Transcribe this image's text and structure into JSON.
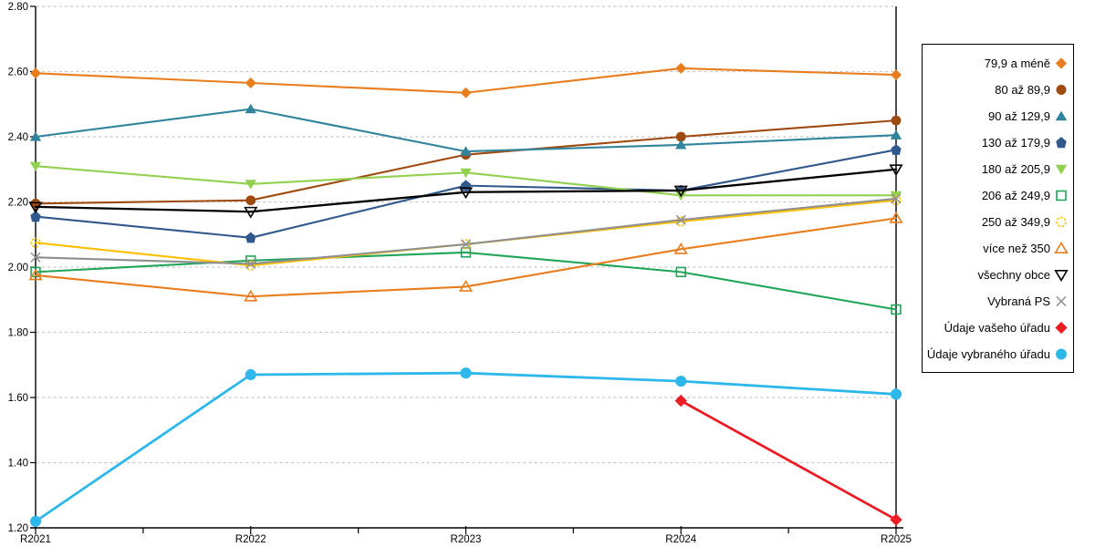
{
  "chart_data": {
    "type": "line",
    "title": "",
    "xlabel": "",
    "ylabel": "",
    "grid": "horizontal-dashed",
    "legend_position": "right-box",
    "x_categories": [
      "R2021",
      "R2022",
      "R2023",
      "R2024",
      "R2025"
    ],
    "y_axis": {
      "min": 1.2,
      "max": 2.8,
      "step": 0.2,
      "tick_labels": [
        "1.20",
        "1.40",
        "1.60",
        "1.80",
        "2.00",
        "2.20",
        "2.40",
        "2.60",
        "2.80"
      ]
    },
    "colors": {
      "gridline": "#c8c8c8",
      "axis": "#000000",
      "background": "#ffffff"
    },
    "series": [
      {
        "name": "79,9 a méně",
        "marker": "diamond",
        "fill": "filled",
        "color": "#e87d1e",
        "values": [
          2.595,
          2.565,
          2.535,
          2.61,
          2.59
        ]
      },
      {
        "name": "80 až 89,9",
        "marker": "circle",
        "fill": "filled",
        "color": "#9e4a10",
        "values": [
          2.195,
          2.205,
          2.345,
          2.4,
          2.45
        ]
      },
      {
        "name": "90 až 129,9",
        "marker": "triangle-up",
        "fill": "filled",
        "color": "#31849b",
        "values": [
          2.4,
          2.485,
          2.355,
          2.375,
          2.405
        ]
      },
      {
        "name": "130 až 179,9",
        "marker": "pentagon",
        "fill": "filled",
        "color": "#30588c",
        "values": [
          2.155,
          2.09,
          2.25,
          2.235,
          2.36
        ]
      },
      {
        "name": "180 až 205,9",
        "marker": "triangle-down",
        "fill": "filled",
        "color": "#92d050",
        "values": [
          2.31,
          2.255,
          2.29,
          2.22,
          2.22
        ]
      },
      {
        "name": "206 až 249,9",
        "marker": "square",
        "fill": "open",
        "color": "#21a559",
        "values": [
          1.985,
          2.02,
          2.045,
          1.985,
          1.87
        ]
      },
      {
        "name": "250 až 349,9",
        "marker": "circle-dashed",
        "fill": "open",
        "color": "#ffc000",
        "values": [
          2.075,
          2.005,
          2.07,
          2.14,
          2.205
        ]
      },
      {
        "name": "více než 350",
        "marker": "triangle-up",
        "fill": "open",
        "color": "#e87d1e",
        "values": [
          1.975,
          1.91,
          1.94,
          2.055,
          2.15
        ]
      },
      {
        "name": "všechny obce",
        "marker": "triangle-down",
        "fill": "open",
        "color": "#000000",
        "values": [
          2.185,
          2.17,
          2.23,
          2.235,
          2.3
        ]
      },
      {
        "name": "Vybraná PS",
        "marker": "x-cross",
        "fill": "open",
        "color": "#8f8f8f",
        "values": [
          2.03,
          2.01,
          2.07,
          2.145,
          2.21
        ]
      },
      {
        "name": "Údaje vašeho úřadu",
        "marker": "diamond",
        "fill": "filled",
        "color": "#ec1c24",
        "values": [
          null,
          null,
          null,
          1.59,
          1.225
        ]
      },
      {
        "name": "Údaje vybraného úřadu",
        "marker": "circle",
        "fill": "filled",
        "color": "#2db7ea",
        "values": [
          1.22,
          1.67,
          1.675,
          1.65,
          1.61
        ]
      }
    ]
  }
}
